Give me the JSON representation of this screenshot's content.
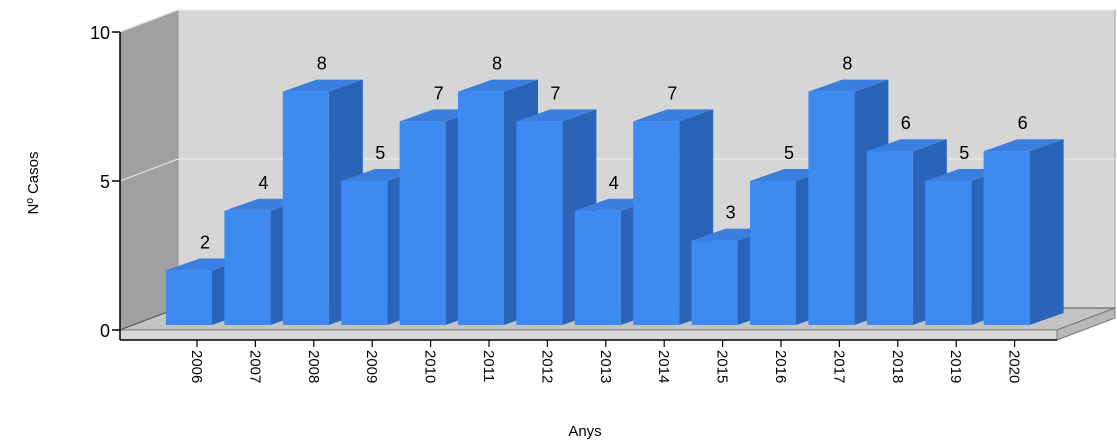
{
  "chart_data": {
    "type": "bar",
    "title": "",
    "xlabel": "Anys",
    "ylabel": "Nº Casos",
    "ylim": [
      0,
      10
    ],
    "yticks": [
      0,
      5,
      10
    ],
    "grid": true,
    "three_d": true,
    "categories": [
      "2006",
      "2007",
      "2008",
      "2009",
      "2010",
      "2011",
      "2012",
      "2013",
      "2014",
      "2015",
      "2016",
      "2017",
      "2018",
      "2019",
      "2020"
    ],
    "values": [
      2,
      4,
      8,
      5,
      7,
      8,
      7,
      4,
      7,
      3,
      5,
      8,
      6,
      5,
      6
    ],
    "colors": {
      "bar_front": "#3d8af0",
      "bar_side": "#2a64b8",
      "bar_top": "#3a7fe0",
      "back_wall": "#d6d6d6",
      "side_wall": "#a0a0a0",
      "floor": "#c4c4c4"
    }
  }
}
